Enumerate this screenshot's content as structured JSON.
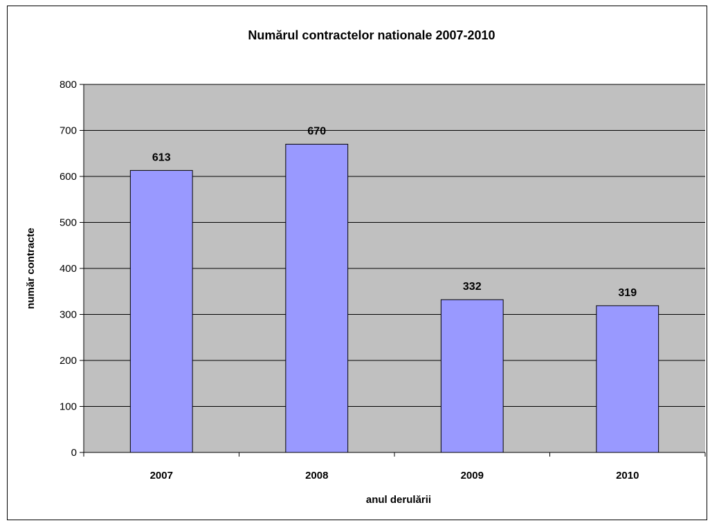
{
  "chart_data": {
    "type": "bar",
    "title": "Numărul contractelor nationale 2007-2010",
    "xlabel": "anul derulării",
    "ylabel": "număr contracte",
    "categories": [
      "2007",
      "2008",
      "2009",
      "2010"
    ],
    "values": [
      613,
      670,
      332,
      319
    ],
    "ylim": [
      0,
      800
    ],
    "yticks": [
      0,
      100,
      200,
      300,
      400,
      500,
      600,
      700,
      800
    ],
    "grid": true,
    "legend": "none",
    "colors": {
      "bar": "#9999ff",
      "plot_background": "#c0c0c0",
      "axis": "#000000"
    }
  }
}
